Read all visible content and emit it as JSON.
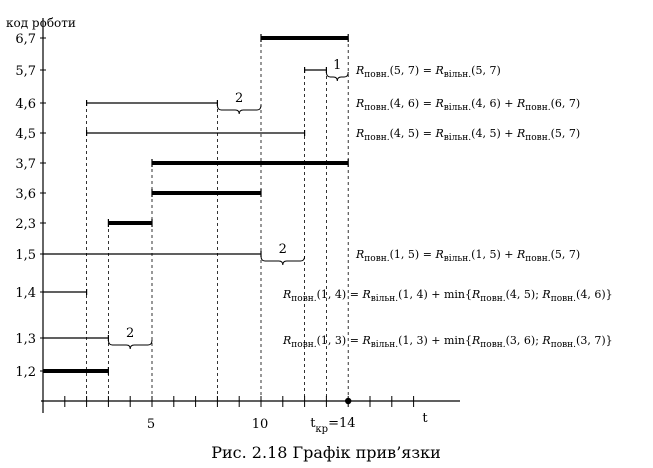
{
  "axis": {
    "y_label": "код роботи",
    "x_label": "t",
    "y_ticks": [
      "6,7",
      "5,7",
      "4,6",
      "4,5",
      "3,7",
      "3,6",
      "2,3",
      "1,5",
      "1,4",
      "1,3",
      "1,2"
    ],
    "x_ticks": [
      {
        "t": 5,
        "label": "5"
      },
      {
        "t": 10,
        "label": "10"
      }
    ],
    "tcr_main": "t",
    "tcr_sub": "кр",
    "tcr_value": "=14"
  },
  "chart_data": {
    "type": "gantt",
    "time_range": [
      0,
      17
    ],
    "critical_time": 14,
    "works": [
      {
        "code": "6,7",
        "start": 10,
        "end": 14,
        "critical": true
      },
      {
        "code": "5,7",
        "start": 12,
        "end": 13,
        "critical": false
      },
      {
        "code": "4,6",
        "start": 2,
        "end": 8,
        "critical": false
      },
      {
        "code": "4,5",
        "start": 2,
        "end": 12,
        "critical": false
      },
      {
        "code": "3,7",
        "start": 5,
        "end": 14,
        "critical": true
      },
      {
        "code": "3,6",
        "start": 5,
        "end": 10,
        "critical": true
      },
      {
        "code": "2,3",
        "start": 3,
        "end": 5,
        "critical": true
      },
      {
        "code": "1,5",
        "start": 0,
        "end": 10,
        "critical": false
      },
      {
        "code": "1,4",
        "start": 0,
        "end": 2,
        "critical": false
      },
      {
        "code": "1,3",
        "start": 0,
        "end": 3,
        "critical": false
      },
      {
        "code": "1,2",
        "start": 0,
        "end": 3,
        "critical": true
      }
    ],
    "slacks": [
      {
        "code": "5,7",
        "from": 13,
        "to": 14,
        "value": "1"
      },
      {
        "code": "4,6",
        "from": 8,
        "to": 10,
        "value": "2"
      },
      {
        "code": "1,5",
        "from": 10,
        "to": 12,
        "value": "2"
      },
      {
        "code": "1,3",
        "from": 3,
        "to": 5,
        "value": "2"
      }
    ]
  },
  "formulas": [
    {
      "code": "5,7",
      "R": "R",
      "s1": "повн.",
      "a1": "(5, 7) = ",
      "R2": "R",
      "s2": "вільн.",
      "a2": "(5, 7)",
      "tail": ""
    },
    {
      "code": "4,6",
      "R": "R",
      "s1": "повн.",
      "a1": "(4, 6) = ",
      "R2": "R",
      "s2": "вільн.",
      "a2": "(4, 6) + ",
      "tail_R": "R",
      "tail_s": "повн.",
      "tail_a": "(6, 7)"
    },
    {
      "code": "4,5",
      "R": "R",
      "s1": "повн.",
      "a1": "(4, 5) = ",
      "R2": "R",
      "s2": "вільн.",
      "a2": "(4, 5) + ",
      "tail_R": "R",
      "tail_s": "повн.",
      "tail_a": "(5, 7)"
    },
    {
      "code": "1,5",
      "R": "R",
      "s1": "повн.",
      "a1": "(1, 5) = ",
      "R2": "R",
      "s2": "вільн.",
      "a2": "(1, 5) + ",
      "tail_R": "R",
      "tail_s": "повн.",
      "tail_a": "(5, 7)"
    }
  ],
  "formulas_min": [
    {
      "code": "1,4",
      "R": "R",
      "s1": "повн.",
      "a1": "(1, 4) = ",
      "R2": "R",
      "s2": "вільн.",
      "a2": "(1, 4) + min{",
      "m1_R": "R",
      "m1_s": "повн.",
      "m1_a": "(4, 5); ",
      "m2_R": "R",
      "m2_s": "повн.",
      "m2_a": "(4, 6)}"
    },
    {
      "code": "1,3",
      "R": "R",
      "s1": "повн.",
      "a1": "(1, 3) = ",
      "R2": "R",
      "s2": "вільн.",
      "a2": "(1, 3) + min{",
      "m1_R": "R",
      "m1_s": "повн.",
      "m1_a": "(3, 6); ",
      "m2_R": "R",
      "m2_s": "повн.",
      "m2_a": "(3, 7)}"
    }
  ],
  "caption": "Рис. 2.18 Графік прив’язки"
}
